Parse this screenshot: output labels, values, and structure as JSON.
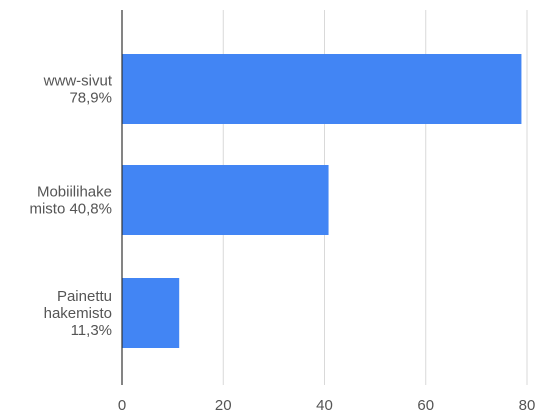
{
  "chart_data": {
    "type": "bar",
    "orientation": "horizontal",
    "categories": [
      [
        "www-sivut",
        "78,9%"
      ],
      [
        "Mobiilihake",
        "misto 40,8%"
      ],
      [
        "Painettu",
        "hakemisto",
        "11,3%"
      ]
    ],
    "values": [
      78.9,
      40.8,
      11.3
    ],
    "xlim": [
      0,
      80
    ],
    "xticks": [
      "0",
      "20",
      "40",
      "60",
      "80"
    ],
    "grid": true,
    "legend": "none",
    "bar_color": "#4285f4",
    "grid_color": "#d9d9d9",
    "axis_color": "#333333",
    "label_color": "#555555"
  }
}
